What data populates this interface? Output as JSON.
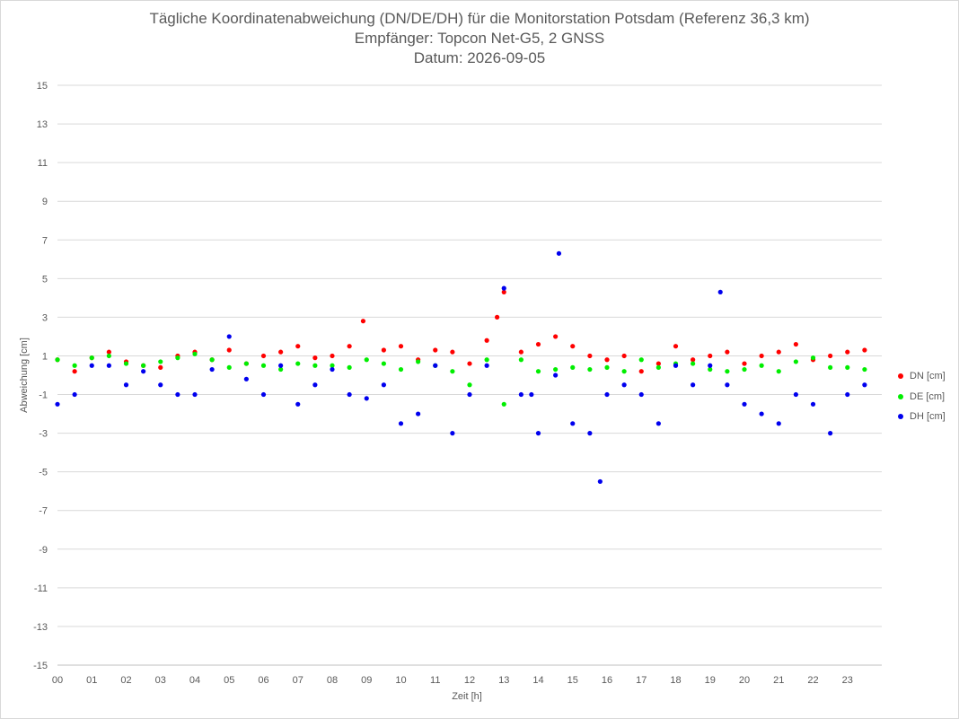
{
  "chart_data": {
    "type": "scatter",
    "title": "Tägliche Koordinatenabweichung (DN/DE/DH) für die Monitorstation Potsdam (Referenz 36,3 km)",
    "subtitle": "Empfänger: Topcon Net-G5, 2 GNSS",
    "date_line": "Datum: 2026-09-05",
    "xlabel": "Zeit [h]",
    "ylabel": "Abweichung [cm]",
    "xlim": [
      0,
      24
    ],
    "ylim": [
      -15,
      15
    ],
    "x_ticks": [
      "00",
      "01",
      "02",
      "03",
      "04",
      "05",
      "06",
      "07",
      "08",
      "09",
      "10",
      "11",
      "12",
      "13",
      "14",
      "15",
      "16",
      "17",
      "18",
      "19",
      "20",
      "21",
      "22",
      "23"
    ],
    "y_ticks": [
      "15",
      "13",
      "11",
      "9",
      "7",
      "5",
      "3",
      "1",
      "-1",
      "-3",
      "-5",
      "-7",
      "-9",
      "-11",
      "-13",
      "-15"
    ],
    "grid": "horizontal",
    "legend_position": "right",
    "series": [
      {
        "name": "DN [cm]",
        "color": "#ff0000",
        "x": [
          0.0,
          0.5,
          1.0,
          1.5,
          2.0,
          2.5,
          3.0,
          3.5,
          4.0,
          4.5,
          5.0,
          5.5,
          6.0,
          6.5,
          7.0,
          7.5,
          8.0,
          8.5,
          8.9,
          9.5,
          10.0,
          10.5,
          11.0,
          11.5,
          12.0,
          12.5,
          12.8,
          13.0,
          13.5,
          14.0,
          14.5,
          15.0,
          15.5,
          16.0,
          16.5,
          17.0,
          17.5,
          18.0,
          18.5,
          19.0,
          19.5,
          20.0,
          20.5,
          21.0,
          21.5,
          22.0,
          22.5,
          23.0,
          23.5
        ],
        "y": [
          0.8,
          0.2,
          0.9,
          1.2,
          0.7,
          0.5,
          0.4,
          1.0,
          1.2,
          0.8,
          1.3,
          0.6,
          1.0,
          1.2,
          1.5,
          0.9,
          1.0,
          1.5,
          2.8,
          1.3,
          1.5,
          0.8,
          1.3,
          1.2,
          0.6,
          1.8,
          3.0,
          4.3,
          1.2,
          1.6,
          2.0,
          1.5,
          1.0,
          0.8,
          1.0,
          0.2,
          0.6,
          1.5,
          0.8,
          1.0,
          1.2,
          0.6,
          1.0,
          1.2,
          1.6,
          0.8,
          1.0,
          1.2,
          1.3
        ]
      },
      {
        "name": "DE [cm]",
        "color": "#00ee00",
        "x": [
          0.0,
          0.5,
          1.0,
          1.5,
          2.0,
          2.5,
          3.0,
          3.5,
          4.0,
          4.5,
          5.0,
          5.5,
          6.0,
          6.5,
          7.0,
          7.5,
          8.0,
          8.5,
          9.0,
          9.5,
          10.0,
          10.5,
          11.0,
          11.5,
          12.0,
          12.5,
          13.0,
          13.5,
          14.0,
          14.5,
          15.0,
          15.5,
          16.0,
          16.5,
          17.0,
          17.5,
          18.0,
          18.5,
          19.0,
          19.5,
          20.0,
          20.5,
          21.0,
          21.5,
          22.0,
          22.5,
          23.0,
          23.5
        ],
        "y": [
          0.8,
          0.5,
          0.9,
          1.0,
          0.6,
          0.5,
          0.7,
          0.9,
          1.1,
          0.8,
          0.4,
          0.6,
          0.5,
          0.3,
          0.6,
          0.5,
          0.5,
          0.4,
          0.8,
          0.6,
          0.3,
          0.7,
          0.5,
          0.2,
          -0.5,
          0.8,
          -1.5,
          0.8,
          0.2,
          0.3,
          0.4,
          0.3,
          0.4,
          0.2,
          0.8,
          0.4,
          0.6,
          0.6,
          0.3,
          0.2,
          0.3,
          0.5,
          0.2,
          0.7,
          0.9,
          0.4,
          0.4,
          0.3
        ]
      },
      {
        "name": "DH [cm]",
        "color": "#0000ee",
        "x": [
          0.0,
          0.5,
          1.0,
          1.5,
          2.0,
          2.5,
          3.0,
          3.5,
          4.0,
          4.5,
          5.0,
          5.5,
          6.0,
          6.5,
          7.0,
          7.5,
          8.0,
          8.5,
          9.0,
          9.5,
          10.0,
          10.5,
          11.0,
          11.5,
          12.0,
          12.5,
          13.0,
          13.5,
          13.8,
          14.0,
          14.5,
          14.6,
          15.0,
          15.5,
          15.8,
          16.0,
          16.5,
          17.0,
          17.5,
          18.0,
          18.5,
          19.0,
          19.3,
          19.5,
          20.0,
          20.5,
          21.0,
          21.5,
          22.0,
          22.5,
          23.0,
          23.5
        ],
        "y": [
          -1.5,
          -1.0,
          0.5,
          0.5,
          -0.5,
          0.2,
          -0.5,
          -1.0,
          -1.0,
          0.3,
          2.0,
          -0.2,
          -1.0,
          0.5,
          -1.5,
          -0.5,
          0.3,
          -1.0,
          -1.2,
          -0.5,
          -2.5,
          -2.0,
          0.5,
          -3.0,
          -1.0,
          0.5,
          4.5,
          -1.0,
          -1.0,
          -3.0,
          0.0,
          6.3,
          -2.5,
          -3.0,
          -5.5,
          -1.0,
          -0.5,
          -1.0,
          -2.5,
          0.5,
          -0.5,
          0.5,
          4.3,
          -0.5,
          -1.5,
          -2.0,
          -2.5,
          -1.0,
          -1.5,
          -3.0,
          -1.0,
          -0.5
        ]
      }
    ]
  }
}
